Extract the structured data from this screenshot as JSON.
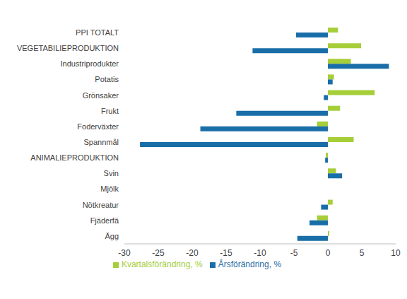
{
  "chart_data": {
    "type": "bar",
    "orientation": "horizontal",
    "categories": [
      "PPI TOTALT",
      "VEGETABILIEPRODUKTION",
      "Industriprodukter",
      "Potatis",
      "Grönsaker",
      "Frukt",
      "Foderväxter",
      "Spannmål",
      "ANIMALIEPRODUKTION",
      "Svin",
      "Mjölk",
      "Nötkreatur",
      "Fjäderfä",
      "Ägg"
    ],
    "series": [
      {
        "name": "Kvartalsförändring, %",
        "color": "#a6ce39",
        "values": [
          1.5,
          4.9,
          3.4,
          0.9,
          6.9,
          1.8,
          -1.6,
          3.8,
          -0.3,
          1.2,
          0,
          0.7,
          -1.6,
          0.2
        ]
      },
      {
        "name": "Årsförändring, %",
        "color": "#1a6ea8",
        "values": [
          -4.7,
          -11.1,
          9.0,
          0.7,
          -0.6,
          -13.5,
          -18.8,
          -27.7,
          -0.4,
          2.1,
          0,
          -1.0,
          -2.7,
          -4.5
        ]
      }
    ],
    "xlim": [
      -30,
      10
    ],
    "xticks": [
      -30,
      -25,
      -20,
      -15,
      -10,
      -5,
      0,
      5,
      10
    ],
    "grid": false,
    "legend": "bottom"
  }
}
